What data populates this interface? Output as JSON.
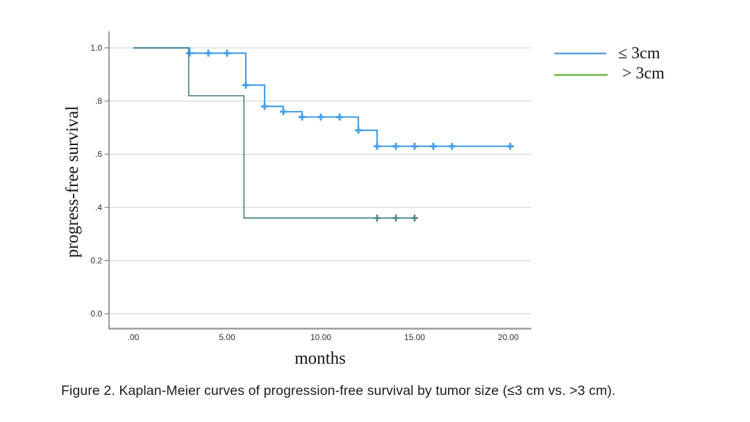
{
  "caption": "Figure 2. Kaplan-Meier curves of progression-free survival by tumor size (≤3 cm vs. >3 cm).",
  "chart_data": {
    "type": "line",
    "subtype": "kaplan_meier_step",
    "title": "",
    "xlabel": "months",
    "ylabel": "progress-free survival",
    "xlim": [
      -1.3,
      21.2
    ],
    "ylim": [
      0,
      1.06
    ],
    "grid": "horizontal",
    "legend_position": "top-right-outside",
    "x_tick_values": [
      0,
      5,
      10,
      15,
      20
    ],
    "x_tick_labels": [
      ".00",
      "5.00",
      "10.00",
      "15.00",
      "20.00"
    ],
    "y_tick_values": [
      0,
      0.2,
      0.4,
      0.6,
      0.8,
      1.0
    ],
    "y_tick_labels": [
      "0.0",
      "0.2",
      ".4",
      ".6",
      ".8",
      "1.0"
    ],
    "series": [
      {
        "id": "le-3cm",
        "name": "≤ 3cm",
        "color": "#469fe8",
        "legend_color": "#5c9ed9",
        "line_width": 2.2,
        "steps": [
          [
            0,
            1.0
          ],
          [
            3,
            0.98
          ],
          [
            6,
            0.86
          ],
          [
            7,
            0.78
          ],
          [
            8,
            0.76
          ],
          [
            9,
            0.74
          ],
          [
            12,
            0.69
          ],
          [
            13,
            0.63
          ]
        ],
        "end_x": 20.2,
        "censors": [
          [
            3,
            0.98
          ],
          [
            4,
            0.98
          ],
          [
            5,
            0.98
          ],
          [
            6,
            0.86
          ],
          [
            7,
            0.78
          ],
          [
            8,
            0.76
          ],
          [
            9,
            0.74
          ],
          [
            10,
            0.74
          ],
          [
            11,
            0.74
          ],
          [
            12,
            0.69
          ],
          [
            13,
            0.63
          ],
          [
            14,
            0.63
          ],
          [
            15,
            0.63
          ],
          [
            16,
            0.63
          ],
          [
            17,
            0.63
          ],
          [
            20.1,
            0.63
          ]
        ]
      },
      {
        "id": "gt-3cm",
        "name": "> 3cm",
        "color": "#45838a",
        "legend_color": "#6cb33f",
        "line_width": 1.7,
        "steps": [
          [
            0,
            1.0
          ],
          [
            2.95,
            0.82
          ],
          [
            5.9,
            0.36
          ]
        ],
        "end_x": 15.15,
        "censors": [
          [
            13,
            0.36
          ],
          [
            14,
            0.36
          ],
          [
            15,
            0.36
          ]
        ]
      }
    ]
  }
}
